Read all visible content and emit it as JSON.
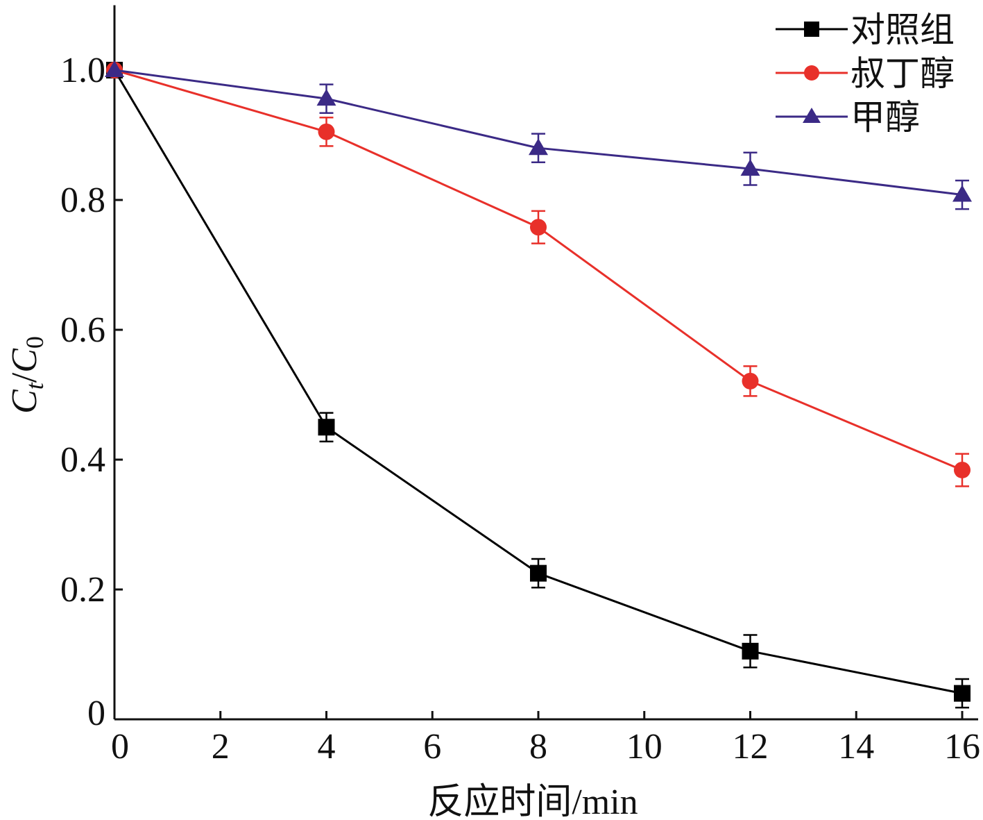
{
  "chart_data": {
    "type": "line",
    "title": "",
    "xlabel": "反应时间/min",
    "ylabel": {
      "main": "C",
      "sub1": "t",
      "slash": "/",
      "main2": "C",
      "sub2": "0"
    },
    "xlim": [
      0,
      16.6
    ],
    "ylim": [
      0,
      1.1
    ],
    "xticks": [
      0,
      2,
      4,
      6,
      8,
      10,
      12,
      14,
      16
    ],
    "xtick_labels": [
      "0",
      "2",
      "4",
      "6",
      "8",
      "10",
      "12",
      "14",
      "16"
    ],
    "yticks": [
      0,
      0.2,
      0.4,
      0.6,
      0.8,
      1.0
    ],
    "ytick_labels": [
      "0",
      "0.2",
      "0.4",
      "0.6",
      "0.8",
      "1.0"
    ],
    "x": [
      0,
      4,
      8,
      12,
      16
    ],
    "legend_position": "top-right",
    "grid": false,
    "series": [
      {
        "name": "对照组",
        "color": "#000000",
        "marker": "square",
        "values": [
          1.0,
          0.45,
          0.225,
          0.105,
          0.04
        ],
        "errors": [
          0,
          0.022,
          0.022,
          0.025,
          0.022
        ]
      },
      {
        "name": "叔丁醇",
        "color": "#e8302a",
        "marker": "circle",
        "values": [
          1.0,
          0.905,
          0.758,
          0.521,
          0.384
        ],
        "errors": [
          0,
          0.022,
          0.025,
          0.023,
          0.025
        ]
      },
      {
        "name": "甲醇",
        "color": "#3b2a86",
        "marker": "triangle",
        "values": [
          1.0,
          0.956,
          0.88,
          0.848,
          0.808
        ],
        "errors": [
          0,
          0.022,
          0.022,
          0.025,
          0.022
        ]
      }
    ]
  }
}
